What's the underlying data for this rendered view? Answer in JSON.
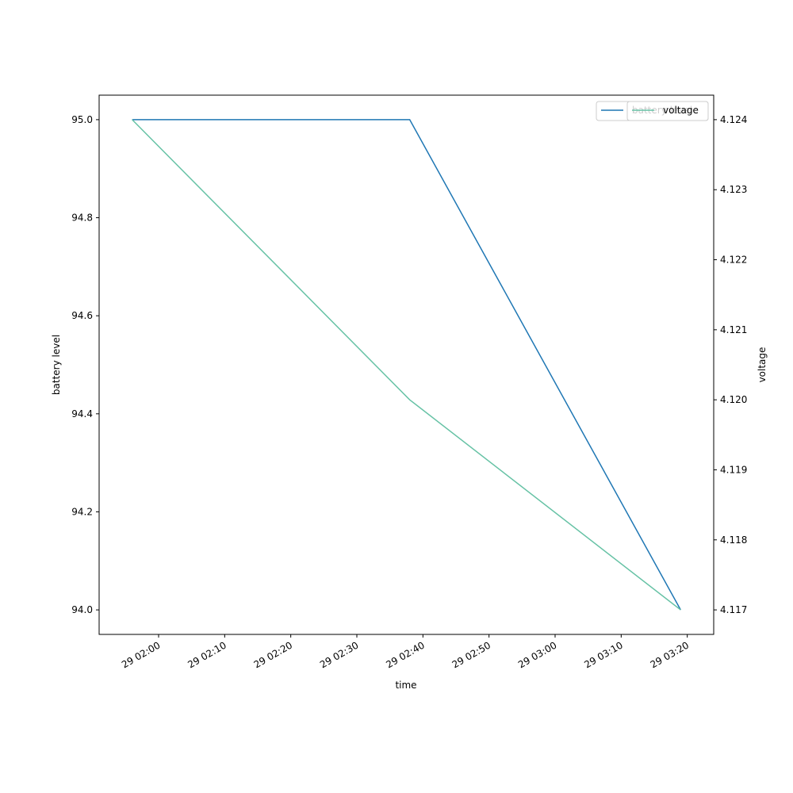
{
  "chart_data": {
    "type": "line",
    "x_label": "time",
    "y_label": "battery level",
    "y2_label": "voltage",
    "x": [
      "29 01:56",
      "29 02:38",
      "29 03:19"
    ],
    "xlim": [
      "29 01:51",
      "29 03:24"
    ],
    "xticks": [
      "29 02:00",
      "29 02:10",
      "29 02:20",
      "29 02:30",
      "29 02:40",
      "29 02:50",
      "29 03:00",
      "29 03:10",
      "29 03:20"
    ],
    "ylim": [
      93.95,
      95.05
    ],
    "yticks": [
      {
        "value": 94,
        "label": "94.0"
      },
      {
        "value": 94.2,
        "label": "94.2"
      },
      {
        "value": 94.4,
        "label": "94.4"
      },
      {
        "value": 94.6,
        "label": "94.6"
      },
      {
        "value": 94.8,
        "label": "94.8"
      },
      {
        "value": 95,
        "label": "95.0"
      }
    ],
    "y2lim": [
      4.11665,
      4.12435
    ],
    "y2ticks": [
      4.117,
      4.118,
      4.119,
      {
        "value": 4.12,
        "label": "4.120"
      },
      4.121,
      4.122,
      4.123,
      4.124
    ],
    "series": [
      {
        "name": "battery level",
        "color": "#1f77b4",
        "values": [
          95,
          95,
          94
        ]
      },
      {
        "name": "voltage",
        "color": "#66c2a5",
        "axis": "y2",
        "values": [
          4.124,
          4.12,
          4.117
        ]
      }
    ],
    "legend": "upper right"
  }
}
